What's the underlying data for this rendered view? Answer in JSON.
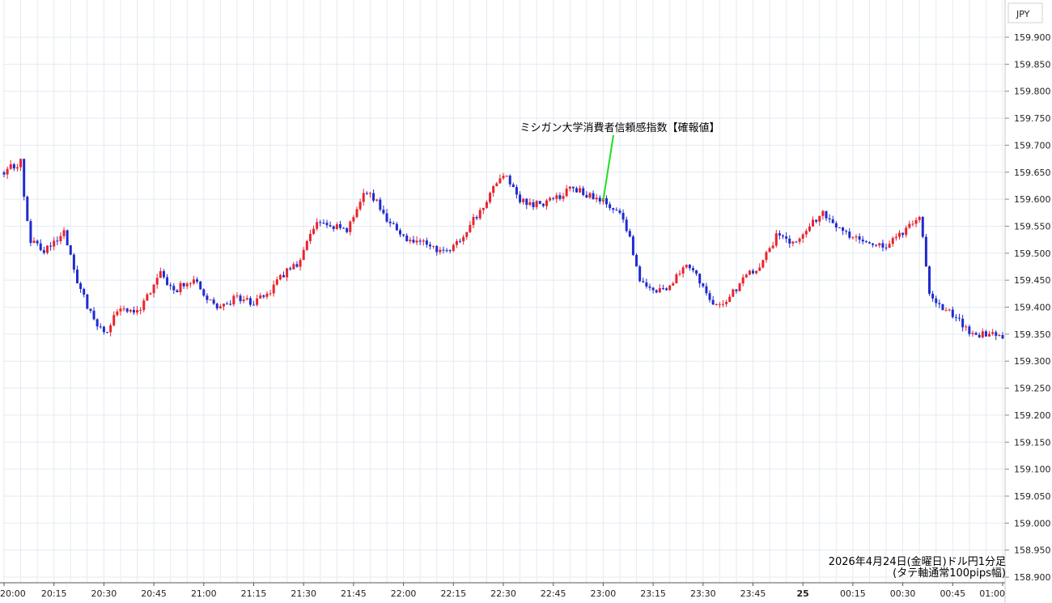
{
  "currency_label": "JPY",
  "caption": {
    "line1": "2026年4月24日(金曜日)ドル円1分足",
    "line2": "(タテ軸通常100pips幅)"
  },
  "annotation": {
    "text": "ミシガン大学消費者信頼感指数【確報値】",
    "time_index": 180,
    "price": 159.598
  },
  "colors": {
    "up": "#e8242e",
    "down": "#1f2bd0",
    "grid": "#e3ebf3",
    "marker": "#22dd22",
    "axis": "#c8c8c8"
  },
  "chart_data": {
    "type": "candlestick",
    "interval": "1 minute",
    "x_axis": {
      "range_minutes_from_2000": [
        0,
        300
      ],
      "tick_labels": [
        "20:00",
        "20:15",
        "20:30",
        "20:45",
        "21:00",
        "21:15",
        "21:30",
        "21:45",
        "22:00",
        "22:15",
        "22:30",
        "22:45",
        "23:00",
        "23:15",
        "23:30",
        "23:45",
        "25",
        "00:15",
        "00:30",
        "00:45",
        "01:00"
      ]
    },
    "y_axis": {
      "range": [
        158.89,
        159.9
      ],
      "tick_values": [
        158.9,
        158.95,
        159.0,
        159.05,
        159.1,
        159.15,
        159.2,
        159.25,
        159.3,
        159.35,
        159.4,
        159.45,
        159.5,
        159.55,
        159.6,
        159.65,
        159.7,
        159.75,
        159.8,
        159.85,
        159.9
      ],
      "tick_labels": [
        "158.900",
        "158.950",
        "159.000",
        "159.050",
        "159.100",
        "159.150",
        "159.200",
        "159.250",
        "159.300",
        "159.350",
        "159.400",
        "159.450",
        "159.500",
        "159.550",
        "159.600",
        "159.650",
        "159.700",
        "159.750",
        "159.800",
        "159.850",
        "159.900"
      ]
    },
    "grid": true,
    "close_path": [
      [
        0,
        159.65
      ],
      [
        5,
        159.67
      ],
      [
        6,
        159.61
      ],
      [
        8,
        159.52
      ],
      [
        12,
        159.505
      ],
      [
        18,
        159.54
      ],
      [
        22,
        159.45
      ],
      [
        25,
        159.4
      ],
      [
        30,
        159.35
      ],
      [
        35,
        159.4
      ],
      [
        40,
        159.39
      ],
      [
        47,
        159.46
      ],
      [
        51,
        159.43
      ],
      [
        57,
        159.455
      ],
      [
        60,
        159.42
      ],
      [
        65,
        159.4
      ],
      [
        70,
        159.42
      ],
      [
        75,
        159.405
      ],
      [
        80,
        159.43
      ],
      [
        85,
        159.47
      ],
      [
        89,
        159.485
      ],
      [
        93,
        159.55
      ],
      [
        97,
        159.555
      ],
      [
        103,
        159.54
      ],
      [
        108,
        159.61
      ],
      [
        112,
        159.6
      ],
      [
        115,
        159.56
      ],
      [
        120,
        159.53
      ],
      [
        125,
        159.52
      ],
      [
        129,
        159.51
      ],
      [
        134,
        159.5
      ],
      [
        140,
        159.55
      ],
      [
        145,
        159.6
      ],
      [
        150,
        159.65
      ],
      [
        155,
        159.6
      ],
      [
        160,
        159.59
      ],
      [
        165,
        159.6
      ],
      [
        171,
        159.62
      ],
      [
        178,
        159.6
      ],
      [
        181,
        159.597
      ],
      [
        185,
        159.57
      ],
      [
        188,
        159.53
      ],
      [
        191,
        159.45
      ],
      [
        195,
        159.43
      ],
      [
        200,
        159.44
      ],
      [
        205,
        159.475
      ],
      [
        209,
        159.45
      ],
      [
        213,
        159.405
      ],
      [
        217,
        159.41
      ],
      [
        222,
        159.45
      ],
      [
        227,
        159.48
      ],
      [
        232,
        159.53
      ],
      [
        237,
        159.52
      ],
      [
        242,
        159.55
      ],
      [
        246,
        159.575
      ],
      [
        251,
        159.545
      ],
      [
        255,
        159.53
      ],
      [
        260,
        159.515
      ],
      [
        265,
        159.51
      ],
      [
        270,
        159.54
      ],
      [
        275,
        159.565
      ],
      [
        276,
        159.53
      ],
      [
        278,
        159.42
      ],
      [
        282,
        159.4
      ],
      [
        286,
        159.38
      ],
      [
        290,
        159.35
      ],
      [
        295,
        159.35
      ],
      [
        300,
        159.345
      ]
    ]
  }
}
